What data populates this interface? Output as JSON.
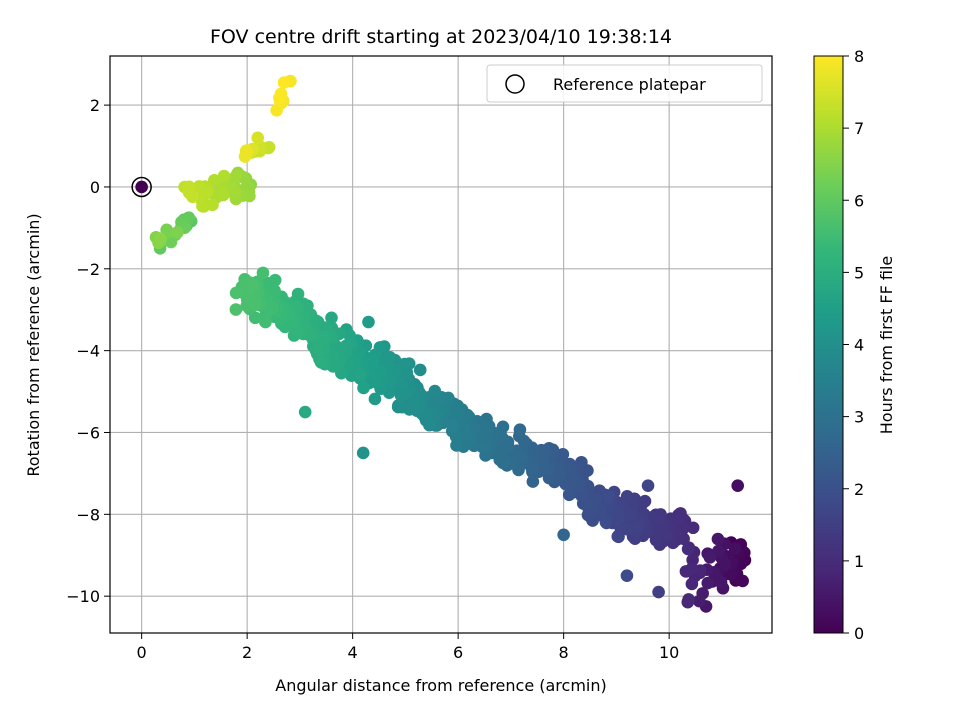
{
  "chart_data": {
    "type": "scatter",
    "title": "FOV centre drift starting at 2023/04/10 19:38:14",
    "xlabel": "Angular distance from reference (arcmin)",
    "ylabel": "Rotation from reference (arcmin)",
    "xlim": [
      -0.6,
      11.95
    ],
    "ylim": [
      -10.9,
      3.2
    ],
    "xticks": [
      0,
      2,
      4,
      6,
      8,
      10
    ],
    "yticks": [
      2,
      0,
      -2,
      -4,
      -6,
      -8,
      -10
    ],
    "xtick_labels": [
      "0",
      "2",
      "4",
      "6",
      "8",
      "10"
    ],
    "ytick_labels": [
      "2",
      "0",
      "−2",
      "−4",
      "−6",
      "−8",
      "−10"
    ],
    "grid": true,
    "legend": {
      "position": "top-right",
      "entries": [
        "Reference platepar"
      ]
    },
    "reference_point": {
      "x": 0,
      "y": 0,
      "label": "Reference platepar"
    },
    "colorbar": {
      "label": "Hours from first FF file",
      "min": 0,
      "max": 8,
      "ticks": [
        0,
        1,
        2,
        3,
        4,
        5,
        6,
        7,
        8
      ],
      "tick_labels": [
        "0",
        "1",
        "2",
        "3",
        "4",
        "5",
        "6",
        "7",
        "8"
      ],
      "colormap": [
        "#440154",
        "#482878",
        "#3e4989",
        "#31688e",
        "#26828e",
        "#1f9e89",
        "#35b779",
        "#6ece58",
        "#b5de2b",
        "#fde725"
      ]
    },
    "clusters": [
      {
        "name": "hour-0-1",
        "t_range": [
          0.0,
          1.0
        ],
        "x_range": [
          10.3,
          11.4
        ],
        "y_center_at_x0": -9.3,
        "slope": 0,
        "spread": 0.55,
        "count": 55
      },
      {
        "name": "hour-1-2",
        "t_range": [
          1.0,
          2.0
        ],
        "x_range": [
          8.4,
          10.3
        ],
        "y_center_at_x0": -8.1,
        "slope": -0.45,
        "spread": 0.4,
        "count": 170
      },
      {
        "name": "hour-2-3",
        "t_range": [
          2.0,
          3.0
        ],
        "x_range": [
          6.6,
          8.4
        ],
        "y_center_at_x0": -6.7,
        "slope": -0.55,
        "spread": 0.35,
        "count": 140
      },
      {
        "name": "hour-3-4",
        "t_range": [
          3.0,
          4.0
        ],
        "x_range": [
          5.0,
          6.6
        ],
        "y_center_at_x0": -5.6,
        "slope": -0.6,
        "spread": 0.4,
        "count": 150
      },
      {
        "name": "hour-4-5",
        "t_range": [
          4.0,
          5.0
        ],
        "x_range": [
          3.3,
          5.0
        ],
        "y_center_at_x0": -4.3,
        "slope": -0.6,
        "spread": 0.45,
        "count": 190
      },
      {
        "name": "hour-5-5.7",
        "t_range": [
          5.0,
          5.7
        ],
        "x_range": [
          1.9,
          3.3
        ],
        "y_center_at_x0": -3.0,
        "slope": -0.6,
        "spread": 0.4,
        "count": 150
      },
      {
        "name": "hour-5.7-6.6",
        "t_range": [
          5.7,
          6.6
        ],
        "x_range": [
          0.3,
          1.1
        ],
        "y_center_at_x0": -1.0,
        "slope": 0.6,
        "spread": 0.2,
        "count": 18
      },
      {
        "name": "hour-6.6-7.3",
        "t_range": [
          6.6,
          7.3
        ],
        "x_range": [
          0.9,
          2.2
        ],
        "y_center_at_x0": -0.1,
        "slope": 0.2,
        "spread": 0.35,
        "count": 50
      },
      {
        "name": "hour-7.3-7.8",
        "t_range": [
          7.3,
          7.8
        ],
        "x_range": [
          1.9,
          2.3
        ],
        "y_center_at_x0": 0.9,
        "slope": 0.4,
        "spread": 0.2,
        "count": 10
      },
      {
        "name": "hour-7.8-8.0",
        "t_range": [
          7.8,
          8.0
        ],
        "x_range": [
          2.6,
          2.8
        ],
        "y_center_at_x0": 2.3,
        "slope": 1.0,
        "spread": 0.2,
        "count": 6
      }
    ],
    "outliers": [
      {
        "x": 11.3,
        "y": -7.3,
        "t": 0.3
      },
      {
        "x": 10.7,
        "y": -10.25,
        "t": 0.5
      },
      {
        "x": 9.8,
        "y": -9.9,
        "t": 1.5
      },
      {
        "x": 9.6,
        "y": -7.3,
        "t": 1.7
      },
      {
        "x": 9.2,
        "y": -9.5,
        "t": 1.8
      },
      {
        "x": 8.0,
        "y": -8.5,
        "t": 2.6
      },
      {
        "x": 4.6,
        "y": -3.9,
        "t": 4.2
      },
      {
        "x": 4.3,
        "y": -3.3,
        "t": 4.4
      },
      {
        "x": 4.2,
        "y": -6.5,
        "t": 4.1
      },
      {
        "x": 3.1,
        "y": -5.5,
        "t": 4.8
      },
      {
        "x": 2.3,
        "y": -2.1,
        "t": 5.6
      },
      {
        "x": 2.2,
        "y": 1.2,
        "t": 7.5
      },
      {
        "x": 2.7,
        "y": 2.55,
        "t": 8.0
      },
      {
        "x": 2.65,
        "y": 2.05,
        "t": 7.9
      },
      {
        "x": 0.35,
        "y": -1.5,
        "t": 6.0
      }
    ]
  }
}
